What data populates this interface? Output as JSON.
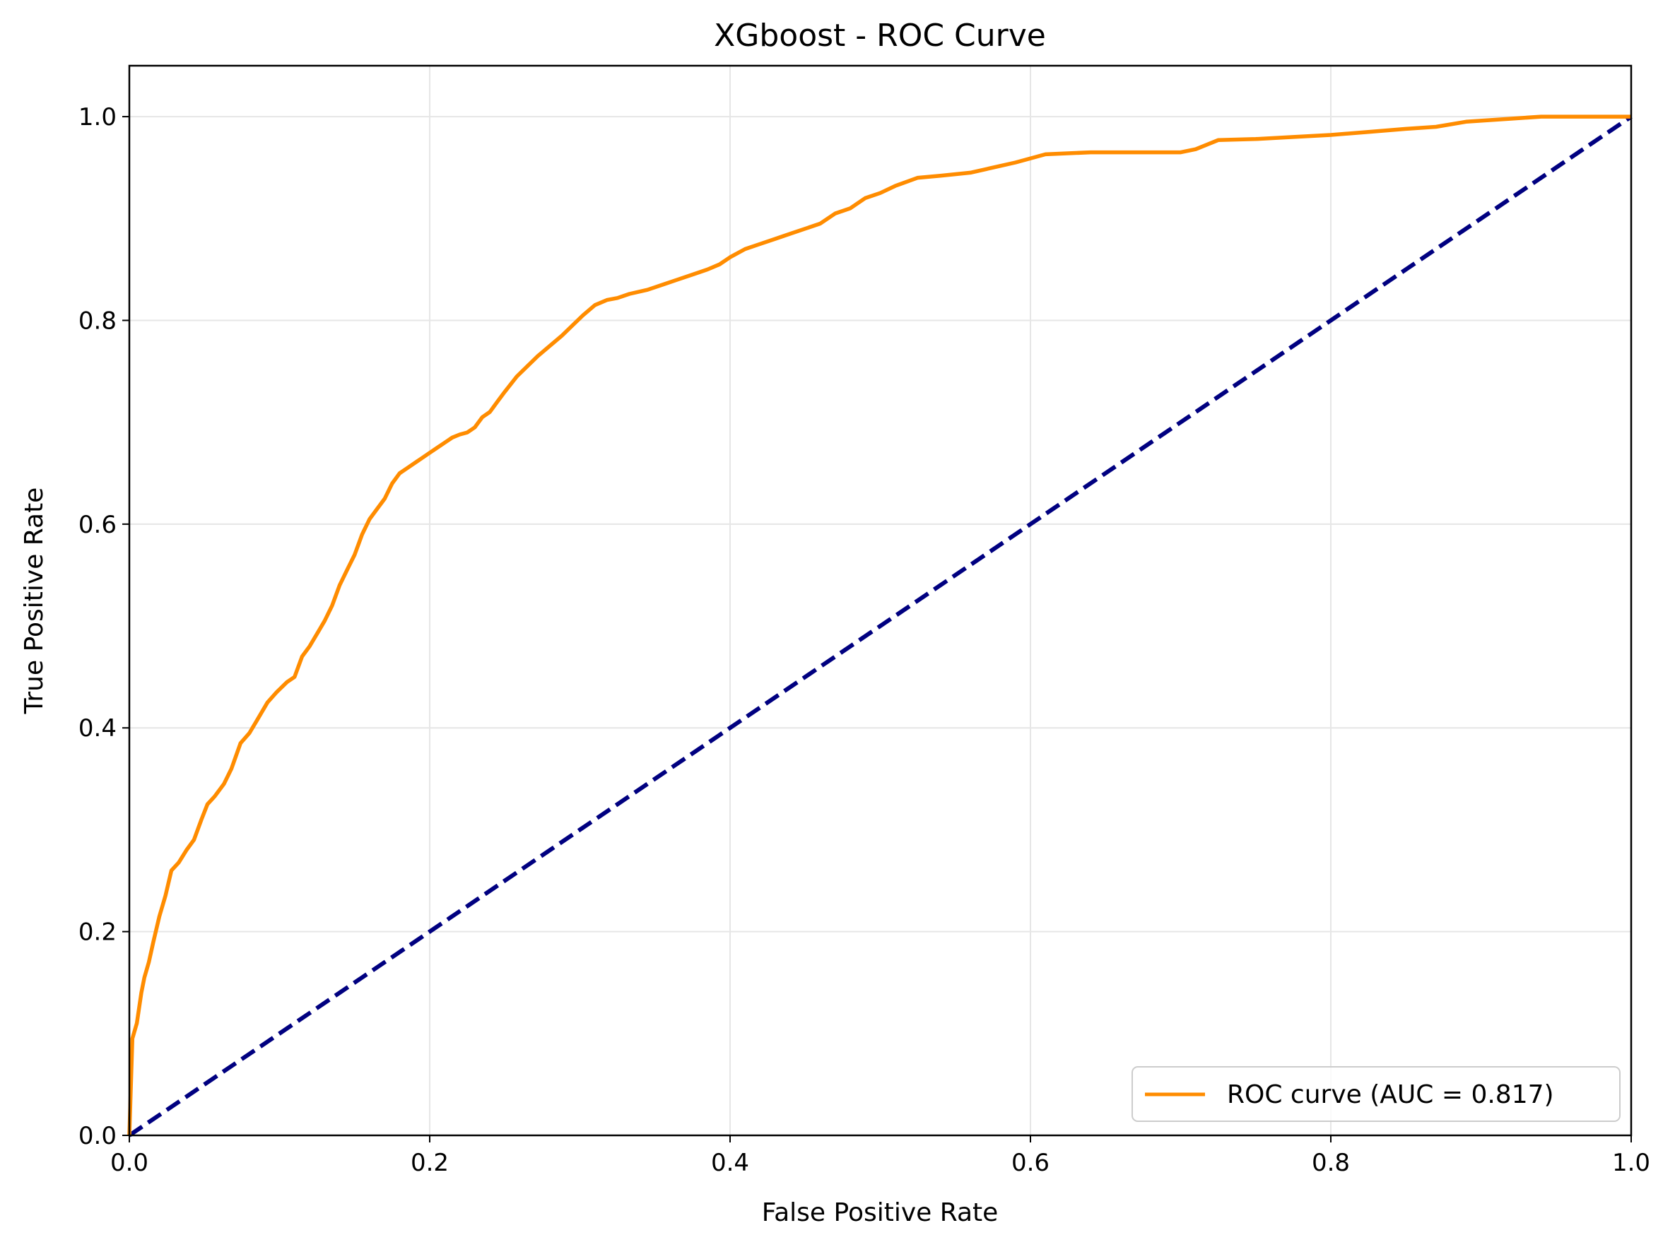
{
  "chart_data": {
    "type": "line",
    "title": "XGboost - ROC Curve",
    "xlabel": "False Positive Rate",
    "ylabel": "True Positive Rate",
    "xlim": [
      0.0,
      1.0
    ],
    "ylim": [
      0.0,
      1.05
    ],
    "xticks": [
      "0.0",
      "0.2",
      "0.4",
      "0.6",
      "0.8",
      "1.0"
    ],
    "yticks": [
      "0.0",
      "0.2",
      "0.4",
      "0.6",
      "0.8",
      "1.0"
    ],
    "grid": true,
    "legend_position": "lower right",
    "series": [
      {
        "name": "ROC curve (AUC = 0.817)",
        "color": "#ff8c00",
        "style": "solid",
        "x": [
          0.0,
          0.002,
          0.005,
          0.008,
          0.01,
          0.013,
          0.016,
          0.02,
          0.024,
          0.028,
          0.033,
          0.038,
          0.043,
          0.048,
          0.052,
          0.057,
          0.063,
          0.068,
          0.074,
          0.08,
          0.086,
          0.092,
          0.098,
          0.105,
          0.11,
          0.115,
          0.12,
          0.126,
          0.13,
          0.135,
          0.14,
          0.145,
          0.15,
          0.155,
          0.16,
          0.165,
          0.17,
          0.175,
          0.18,
          0.185,
          0.19,
          0.195,
          0.2,
          0.205,
          0.21,
          0.215,
          0.22,
          0.225,
          0.23,
          0.235,
          0.24,
          0.245,
          0.25,
          0.258,
          0.265,
          0.272,
          0.28,
          0.288,
          0.295,
          0.302,
          0.31,
          0.318,
          0.325,
          0.333,
          0.345,
          0.355,
          0.365,
          0.375,
          0.385,
          0.393,
          0.4,
          0.41,
          0.42,
          0.43,
          0.44,
          0.45,
          0.46,
          0.47,
          0.48,
          0.49,
          0.5,
          0.51,
          0.525,
          0.54,
          0.56,
          0.575,
          0.59,
          0.61,
          0.64,
          0.67,
          0.7,
          0.71,
          0.725,
          0.75,
          0.775,
          0.8,
          0.825,
          0.85,
          0.87,
          0.89,
          0.92,
          0.94,
          0.96,
          1.0
        ],
        "y": [
          0.0,
          0.095,
          0.11,
          0.14,
          0.155,
          0.17,
          0.19,
          0.215,
          0.235,
          0.26,
          0.268,
          0.28,
          0.29,
          0.31,
          0.325,
          0.333,
          0.345,
          0.36,
          0.385,
          0.395,
          0.41,
          0.425,
          0.435,
          0.445,
          0.45,
          0.47,
          0.48,
          0.495,
          0.505,
          0.52,
          0.54,
          0.555,
          0.57,
          0.59,
          0.605,
          0.615,
          0.625,
          0.64,
          0.65,
          0.655,
          0.66,
          0.665,
          0.67,
          0.675,
          0.68,
          0.685,
          0.688,
          0.69,
          0.695,
          0.705,
          0.71,
          0.72,
          0.73,
          0.745,
          0.755,
          0.765,
          0.775,
          0.785,
          0.795,
          0.805,
          0.815,
          0.82,
          0.822,
          0.826,
          0.83,
          0.835,
          0.84,
          0.845,
          0.85,
          0.855,
          0.862,
          0.87,
          0.875,
          0.88,
          0.885,
          0.89,
          0.895,
          0.905,
          0.91,
          0.92,
          0.925,
          0.932,
          0.94,
          0.942,
          0.945,
          0.95,
          0.955,
          0.963,
          0.965,
          0.965,
          0.965,
          0.968,
          0.977,
          0.978,
          0.98,
          0.982,
          0.985,
          0.988,
          0.99,
          0.995,
          0.998,
          1.0,
          1.0,
          1.0
        ]
      },
      {
        "name": "",
        "color": "#000080",
        "style": "dashed",
        "x": [
          0.0,
          1.0
        ],
        "y": [
          0.0,
          1.0
        ]
      }
    ]
  }
}
